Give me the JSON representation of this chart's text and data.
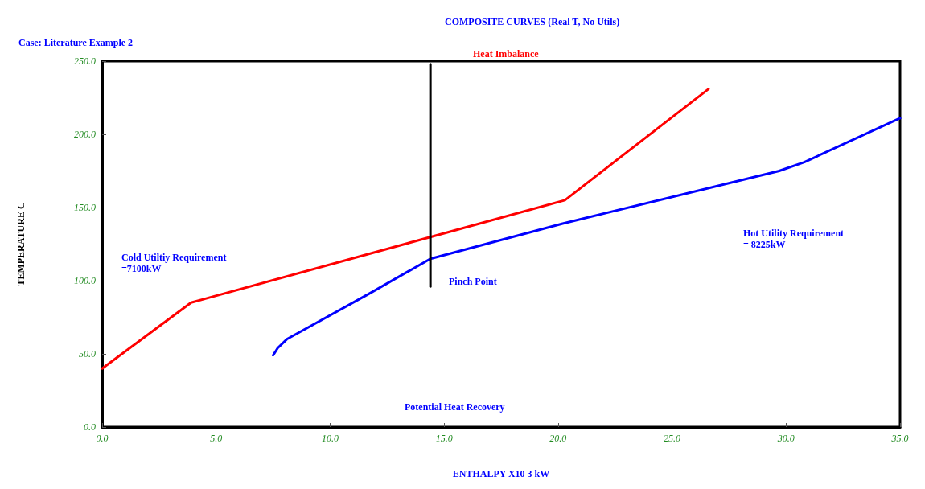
{
  "chart_data": {
    "type": "line",
    "title": "COMPOSITE CURVES (Real T, No Utils)",
    "subtitle": "Case: Literature Example 2",
    "xlabel": "ENTHALPY X10 3 kW",
    "ylabel": "TEMPERATURE C",
    "series": [
      {
        "color": "#ff0000",
        "x": [
          0,
          3.9,
          20.3,
          26.6
        ],
        "values": [
          40,
          85,
          155,
          231
        ]
      },
      {
        "color": "#0000ff",
        "x": [
          7.5,
          7.7,
          8.1,
          11.7,
          14.4,
          20.2,
          29.7,
          30.8,
          35
        ],
        "values": [
          49,
          54,
          60,
          91,
          115,
          139,
          175,
          181,
          211
        ]
      },
      {
        "color": "#000000",
        "x": [
          14.4,
          14.4
        ],
        "values": [
          96,
          248
        ]
      }
    ],
    "annotations": [
      "Heat Imbalance",
      "Cold Utiltiy Requirement\n=7100kW",
      "Pinch Point",
      "Hot Utility Requirement\n= 8225kW",
      "Potential Heat Recovery"
    ],
    "xlim": [
      0,
      35
    ],
    "xticks": [
      {
        "value": 0,
        "label": "0.0"
      },
      {
        "value": 5,
        "label": "5.0"
      },
      {
        "value": 10,
        "label": "10.0"
      },
      {
        "value": 15,
        "label": "15.0"
      },
      {
        "value": 20,
        "label": "20.0"
      },
      {
        "value": 25,
        "label": "25.0"
      },
      {
        "value": 30,
        "label": "30.0"
      },
      {
        "value": 35,
        "label": "35.0"
      }
    ],
    "ylim": [
      0,
      250
    ],
    "yticks": [
      {
        "value": 0,
        "label": "0.0"
      },
      {
        "value": 50,
        "label": "50.0"
      },
      {
        "value": 100,
        "label": "100.0"
      },
      {
        "value": 150,
        "label": "150.0"
      },
      {
        "value": 200,
        "label": "200.0"
      },
      {
        "value": 250,
        "label": "250.0"
      }
    ],
    "grid": false,
    "marker": "none",
    "line_style": "solid"
  }
}
